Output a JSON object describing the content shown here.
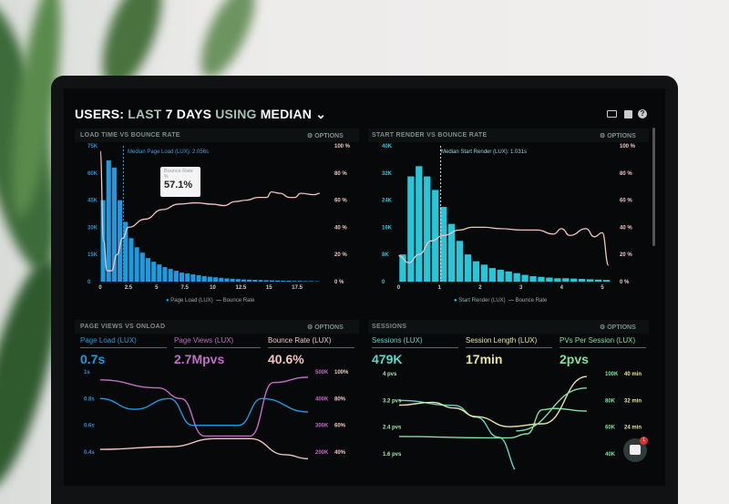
{
  "header": {
    "parts": [
      "USERS:",
      "LAST",
      "7 DAYS",
      "USING",
      "MEDIAN"
    ],
    "icons": [
      "monitor-icon",
      "image-icon",
      "help-icon"
    ]
  },
  "options_label": "OPTIONS",
  "colors": {
    "blue": "#1b9be0",
    "cyan": "#27c6d8",
    "pink": "#f2c4c4",
    "purple": "#c36bc8",
    "green": "#7ee2a4",
    "yellow": "#e9e59a",
    "teal": "#5fd6c8"
  },
  "panels": {
    "load": {
      "title": "LOAD TIME VS BOUNCE RATE",
      "median": "Median Page Load (LUX): 2.056s",
      "tooltip_label": "Bounce Rate",
      "tooltip_unit": "%",
      "tooltip_value": "57.1%",
      "legend": [
        "Page Load (LUX)",
        "Bounce Rate"
      ]
    },
    "render": {
      "title": "START RENDER VS BOUNCE RATE",
      "median": "Median Start Render (LUX): 1.031s",
      "legend": [
        "Start Render (LUX)",
        "Bounce Rate"
      ]
    },
    "pageviews": {
      "title": "PAGE VIEWS VS ONLOAD",
      "kpis": [
        {
          "label": "Page Load (LUX)",
          "value": "0.7s"
        },
        {
          "label": "Page Views (LUX)",
          "value": "2.7Mpvs"
        },
        {
          "label": "Bounce Rate (LUX)",
          "value": "40.6%"
        }
      ]
    },
    "sessions": {
      "title": "SESSIONS",
      "kpis": [
        {
          "label": "Sessions (LUX)",
          "value": "479K"
        },
        {
          "label": "Session Length (LUX)",
          "value": "17min"
        },
        {
          "label": "PVs Per Session (LUX)",
          "value": "2pvs"
        }
      ]
    }
  },
  "chat_badge": "1",
  "chart_data": [
    {
      "type": "bar",
      "title": "LOAD TIME VS BOUNCE RATE",
      "xlim": [
        0,
        20
      ],
      "ylim": [
        0,
        75000
      ],
      "y2lim": [
        0,
        100
      ],
      "xticks": [
        "0",
        "2.5",
        "5",
        "7.5",
        "10",
        "12.5",
        "15",
        "17.5"
      ],
      "yticks": [
        "0",
        "15K",
        "30K",
        "45K",
        "60K",
        "75K"
      ],
      "y2ticks": [
        "0 %",
        "20 %",
        "40 %",
        "60 %",
        "80 %",
        "100 %"
      ],
      "median_x": 2.056,
      "bars": {
        "name": "Page Load (LUX)",
        "x_start": 0.25,
        "step": 0.5,
        "values": [
          45000,
          67000,
          63000,
          45000,
          33000,
          24000,
          19000,
          16000,
          13000,
          11000,
          9500,
          8000,
          7000,
          6000,
          5000,
          4500,
          4000,
          3500,
          3000,
          2700,
          2400,
          2100,
          1800,
          1600,
          1400,
          1200,
          1100,
          1000,
          900,
          800,
          700,
          600,
          500,
          500,
          400,
          400,
          300,
          300,
          200
        ]
      },
      "line": {
        "name": "Bounce Rate",
        "points": [
          [
            0,
            96
          ],
          [
            0.3,
            30
          ],
          [
            0.6,
            8
          ],
          [
            1,
            8
          ],
          [
            1.5,
            20
          ],
          [
            2,
            32
          ],
          [
            2.5,
            40
          ],
          [
            4,
            46
          ],
          [
            5.5,
            53
          ],
          [
            7,
            57.1
          ],
          [
            8.5,
            58
          ],
          [
            10,
            57
          ],
          [
            11,
            56
          ],
          [
            12,
            59
          ],
          [
            13,
            60
          ],
          [
            14,
            62
          ],
          [
            14.8,
            62
          ],
          [
            15.2,
            66
          ],
          [
            16,
            65
          ],
          [
            16.8,
            62
          ],
          [
            17.3,
            62
          ],
          [
            17.8,
            65
          ],
          [
            19,
            64
          ],
          [
            19.5,
            65
          ]
        ]
      }
    },
    {
      "type": "bar",
      "title": "START RENDER VS BOUNCE RATE",
      "xlim": [
        -0.1,
        5.2
      ],
      "ylim": [
        0,
        40000
      ],
      "y2lim": [
        0,
        100
      ],
      "xticks": [
        "0",
        "1",
        "2",
        "3",
        "4",
        "5"
      ],
      "yticks": [
        "0",
        "8K",
        "16K",
        "24K",
        "32K",
        "40K"
      ],
      "y2ticks": [
        "0 %",
        "20 %",
        "40 %",
        "60 %",
        "80 %",
        "100 %"
      ],
      "median_x": 1.031,
      "bars": {
        "name": "Start Render (LUX)",
        "x_start": 0.1,
        "step": 0.2,
        "values": [
          8000,
          31000,
          34000,
          31000,
          27000,
          22000,
          17000,
          12000,
          8000,
          6000,
          5000,
          4000,
          3500,
          3000,
          2500,
          2000,
          1600,
          1400,
          1200,
          1000,
          1000,
          900,
          800,
          700,
          600,
          500
        ]
      },
      "line": {
        "name": "Bounce Rate",
        "points": [
          [
            0,
            19
          ],
          [
            0.25,
            14
          ],
          [
            0.5,
            20
          ],
          [
            0.8,
            30
          ],
          [
            1.1,
            34
          ],
          [
            1.5,
            38
          ],
          [
            1.8,
            40
          ],
          [
            2.1,
            40
          ],
          [
            2.5,
            39
          ],
          [
            3,
            38
          ],
          [
            3.4,
            38
          ],
          [
            3.8,
            35
          ],
          [
            4,
            39
          ],
          [
            4.2,
            34
          ],
          [
            4.6,
            39
          ],
          [
            4.8,
            33
          ],
          [
            5,
            36
          ],
          [
            5.15,
            12
          ]
        ]
      }
    },
    {
      "type": "line",
      "title": "PAGE VIEWS VS ONLOAD",
      "yticks": [
        "1s",
        "0.8s",
        "0.6s",
        "0.4s"
      ],
      "y2ticks": [
        "500K",
        "400K",
        "300K",
        "200K"
      ],
      "y3ticks": [
        "100%",
        "80%",
        "60%",
        "40%"
      ],
      "series": [
        {
          "name": "Page Load (LUX)",
          "points": [
            [
              0,
              0.6
            ],
            [
              1.5,
              0.68
            ],
            [
              3,
              0.6
            ],
            [
              4,
              0.8
            ],
            [
              6,
              0.8
            ],
            [
              7,
              0.6
            ],
            [
              9,
              0.7
            ]
          ]
        },
        {
          "name": "Page Views (LUX)",
          "points": [
            [
              0,
              470
            ],
            [
              2.5,
              440
            ],
            [
              3.5,
              400
            ],
            [
              4.5,
              260
            ],
            [
              6.5,
              260
            ],
            [
              7.5,
              460
            ],
            [
              9,
              480
            ]
          ]
        },
        {
          "name": "Bounce Rate (LUX)",
          "points": [
            [
              0,
              42
            ],
            [
              3,
              44
            ],
            [
              5,
              50
            ],
            [
              6.5,
              50
            ],
            [
              8,
              38
            ],
            [
              9,
              35
            ]
          ]
        }
      ]
    },
    {
      "type": "line",
      "title": "SESSIONS",
      "yticks": [
        "4 pvs",
        "3.2 pvs",
        "2.4 pvs",
        "1.6 pvs"
      ],
      "y2ticks": [
        "100K",
        "80K",
        "60K",
        "40K"
      ],
      "y3ticks": [
        "40 min",
        "32 min",
        "24 min",
        "16 min"
      ],
      "series": [
        {
          "name": "PVs Per Session (LUX)",
          "points": [
            [
              0,
              3.2
            ],
            [
              2.5,
              3.05
            ],
            [
              3.5,
              2.7
            ],
            [
              4.5,
              2.1
            ],
            [
              5.5,
              1.0
            ]
          ]
        },
        {
          "name": "Sessions (LUX)",
          "points": [
            [
              0,
              53
            ],
            [
              4,
              52
            ],
            [
              5,
              52
            ],
            [
              5.8,
              55
            ],
            [
              6.5,
              73
            ],
            [
              7,
              74
            ],
            [
              8.5,
              72
            ]
          ]
        },
        {
          "name": "Session Length (LUX)",
          "points": [
            [
              0,
              18
            ],
            [
              1.5,
              20
            ],
            [
              2.5,
              16
            ],
            [
              3.5,
              10
            ],
            [
              5,
              3
            ],
            [
              6.5,
              5
            ],
            [
              8.5,
              38
            ]
          ]
        },
        {
          "name": "Session Length trend",
          "points": [
            [
              5.3,
              0
            ],
            [
              8.5,
              30
            ]
          ]
        }
      ]
    }
  ]
}
